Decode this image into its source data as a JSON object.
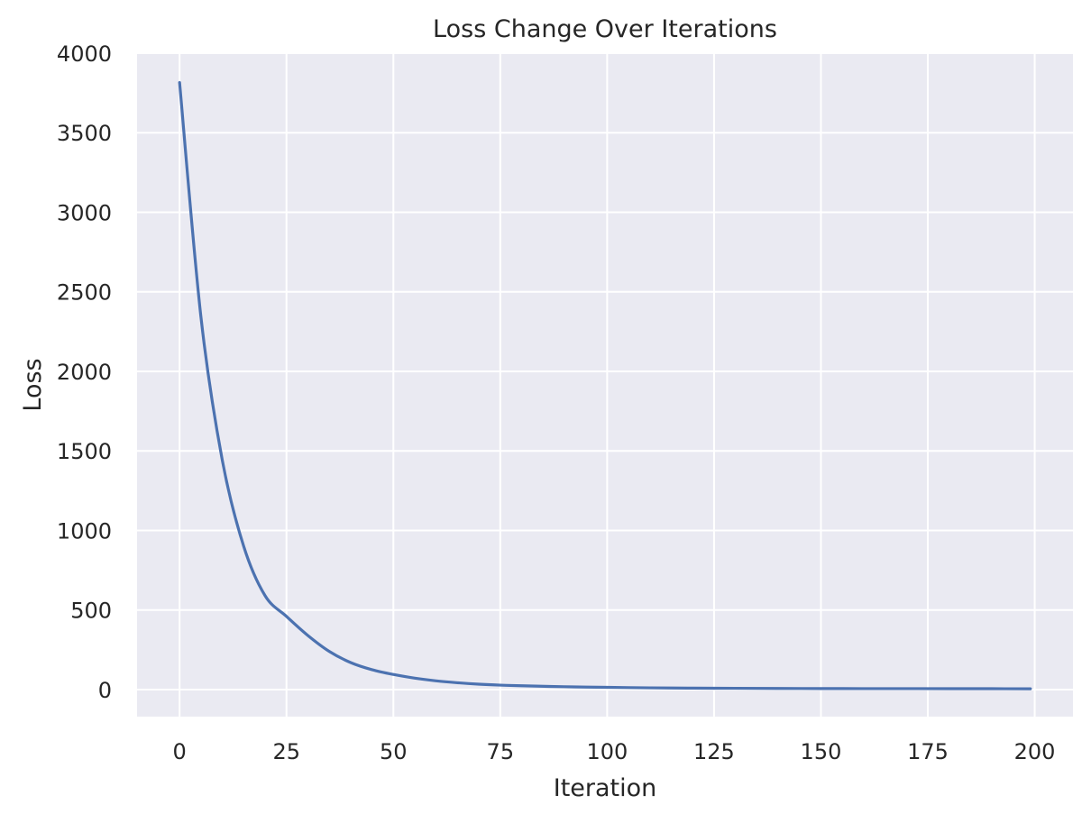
{
  "chart_data": {
    "type": "line",
    "title": "Loss Change Over Iterations",
    "xlabel": "Iteration",
    "ylabel": "Loss",
    "xlim": [
      -9.95,
      208.95
    ],
    "ylim": [
      -170,
      4000
    ],
    "xticks": [
      0,
      25,
      50,
      75,
      100,
      125,
      150,
      175,
      200
    ],
    "yticks": [
      0,
      500,
      1000,
      1500,
      2000,
      2500,
      3000,
      3500,
      4000
    ],
    "grid": true,
    "style": "seaborn-darkgrid",
    "colors": {
      "background": "#eaeaf2",
      "grid": "#ffffff",
      "line": "#4c72b0"
    },
    "series": [
      {
        "x": [
          0,
          5,
          10,
          15,
          20,
          25,
          30,
          35,
          40,
          45,
          50,
          55,
          60,
          65,
          70,
          75,
          80,
          90,
          100,
          110,
          120,
          130,
          140,
          150,
          160,
          170,
          180,
          190,
          199
        ],
        "y": [
          3815,
          2340,
          1440,
          900,
          590,
          460,
          340,
          240,
          170,
          125,
          95,
          72,
          55,
          43,
          34,
          28,
          24,
          18,
          14,
          11,
          9,
          8,
          7,
          6.5,
          6,
          6,
          5.5,
          5.5,
          5
        ]
      }
    ]
  }
}
